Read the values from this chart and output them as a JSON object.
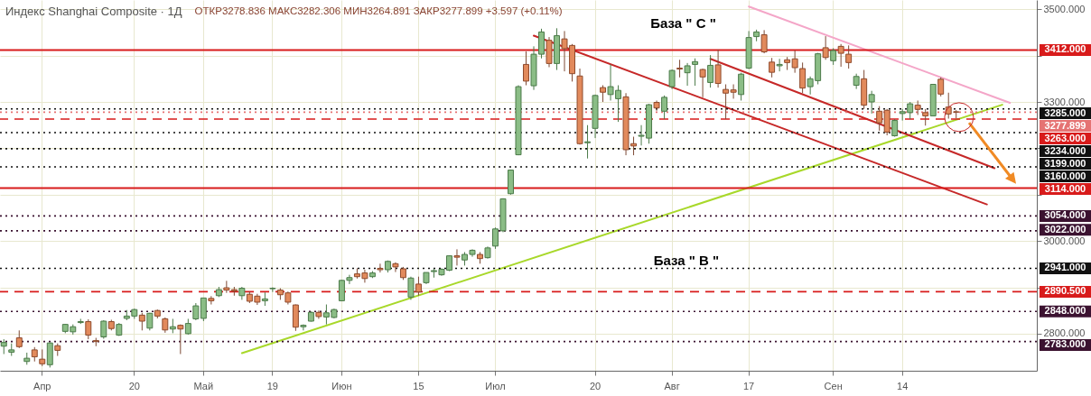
{
  "chart_data": {
    "type": "candlestick",
    "title": "Индекс Shanghai Composite · 1Д",
    "subtitle": "ОТКР3278.836 МАКС3282.306 МИН3264.891 ЗАКР3277.899 +3.597 (+0.11%)",
    "annotations": [
      "База \" С \"",
      "База \" В \""
    ],
    "categories": [
      null,
      null,
      null,
      null,
      null,
      "Апр",
      null,
      null,
      null,
      null,
      null,
      null,
      null,
      null,
      null,
      null,
      null,
      "20",
      null,
      null,
      null,
      null,
      null,
      null,
      null,
      null,
      "Май",
      null,
      null,
      null,
      null,
      null,
      null,
      null,
      null,
      "19",
      null,
      null,
      null,
      null,
      null,
      null,
      null,
      null,
      "Июн",
      null,
      null,
      null,
      null,
      null,
      null,
      null,
      null,
      null,
      "15",
      null,
      null,
      null,
      null,
      null,
      null,
      null,
      null,
      null,
      "Июл",
      null,
      null,
      null,
      null,
      null,
      null,
      null,
      null,
      null,
      null,
      null,
      null,
      "20",
      null,
      null,
      null,
      null,
      null,
      null,
      null,
      null,
      null,
      "Авг",
      null,
      null,
      null,
      null,
      null,
      null,
      null,
      null,
      null,
      "17",
      null,
      null,
      null,
      null,
      null,
      null,
      null,
      null,
      null,
      null,
      "Сен",
      null,
      null,
      null,
      null,
      null,
      null,
      null,
      null,
      "14",
      null,
      null,
      null,
      null,
      null,
      null,
      null,
      null,
      null,
      null,
      null,
      null,
      null,
      null,
      null,
      null,
      null
    ],
    "ohlc": [
      [
        2773,
        2788,
        2756,
        2781
      ],
      [
        2760,
        2779,
        2752,
        2765
      ],
      [
        2791,
        2807,
        2769,
        2772
      ],
      [
        2740,
        2759,
        2733,
        2747
      ],
      [
        2765,
        2771,
        2740,
        2750
      ],
      [
        2745,
        2766,
        2730,
        2735
      ],
      [
        2733,
        2781,
        2727,
        2780
      ],
      [
        2774,
        2779,
        2752,
        2764
      ],
      [
        2805,
        2821,
        2801,
        2820
      ],
      [
        2804,
        2820,
        2798,
        2815
      ],
      [
        2824,
        2832,
        2821,
        2826
      ],
      [
        2826,
        2831,
        2788,
        2797
      ],
      [
        2785,
        2791,
        2773,
        2783
      ],
      [
        2793,
        2829,
        2789,
        2827
      ],
      [
        2826,
        2830,
        2807,
        2811
      ],
      [
        2797,
        2823,
        2795,
        2820
      ],
      [
        2833,
        2851,
        2829,
        2838
      ],
      [
        2838,
        2854,
        2832,
        2852
      ],
      [
        2840,
        2845,
        2807,
        2827
      ],
      [
        2812,
        2845,
        2807,
        2844
      ],
      [
        2850,
        2852,
        2833,
        2838
      ],
      [
        2832,
        2835,
        2802,
        2808
      ],
      [
        2810,
        2832,
        2801,
        2815
      ],
      [
        2818,
        2820,
        2756,
        2810
      ],
      [
        2800,
        2832,
        2798,
        2822
      ],
      [
        2832,
        2866,
        2829,
        2860
      ],
      [
        2833,
        2877,
        2827,
        2877
      ],
      [
        2876,
        2881,
        2863,
        2871
      ],
      [
        2882,
        2901,
        2879,
        2895
      ],
      [
        2899,
        2914,
        2888,
        2894
      ],
      [
        2895,
        2901,
        2882,
        2892
      ],
      [
        2882,
        2901,
        2873,
        2898
      ],
      [
        2885,
        2891,
        2866,
        2870
      ],
      [
        2881,
        2886,
        2862,
        2868
      ],
      [
        2871,
        2889,
        2860,
        2875
      ],
      [
        2897,
        2900,
        2890,
        2898
      ],
      [
        2894,
        2898,
        2873,
        2884
      ],
      [
        2888,
        2891,
        2863,
        2868
      ],
      [
        2862,
        2863,
        2806,
        2814
      ],
      [
        2815,
        2820,
        2807,
        2818
      ],
      [
        2827,
        2848,
        2826,
        2846
      ],
      [
        2846,
        2850,
        2832,
        2837
      ],
      [
        2836,
        2863,
        2820,
        2845
      ],
      [
        2835,
        2854,
        2833,
        2852
      ],
      [
        2871,
        2916,
        2870,
        2915
      ],
      [
        2915,
        2927,
        2907,
        2921
      ],
      [
        2929,
        2941,
        2919,
        2923
      ],
      [
        2931,
        2938,
        2910,
        2919
      ],
      [
        2923,
        2935,
        2920,
        2931
      ],
      [
        2941,
        2951,
        2932,
        2938
      ],
      [
        2938,
        2958,
        2932,
        2956
      ],
      [
        2951,
        2954,
        2933,
        2944
      ],
      [
        2940,
        2944,
        2916,
        2921
      ],
      [
        2879,
        2923,
        2873,
        2920
      ],
      [
        2907,
        2923,
        2882,
        2890
      ],
      [
        2910,
        2932,
        2907,
        2932
      ],
      [
        2934,
        2940,
        2921,
        2936
      ],
      [
        2927,
        2941,
        2925,
        2939
      ],
      [
        2937,
        2969,
        2935,
        2968
      ],
      [
        2968,
        2982,
        2947,
        2965
      ],
      [
        2959,
        2976,
        2947,
        2971
      ],
      [
        2971,
        2982,
        2966,
        2980
      ],
      [
        2971,
        2976,
        2951,
        2962
      ],
      [
        2964,
        2988,
        2962,
        2985
      ],
      [
        2989,
        3029,
        2983,
        3026
      ],
      [
        3022,
        3092,
        3019,
        3091
      ],
      [
        3102,
        3154,
        3100,
        3153
      ],
      [
        3186,
        3336,
        3185,
        3333
      ],
      [
        3381,
        3409,
        3336,
        3345
      ],
      [
        3335,
        3420,
        3326,
        3403
      ],
      [
        3403,
        3458,
        3394,
        3451
      ],
      [
        3433,
        3440,
        3375,
        3383
      ],
      [
        3383,
        3459,
        3369,
        3443
      ],
      [
        3436,
        3453,
        3366,
        3415
      ],
      [
        3422,
        3425,
        3344,
        3361
      ],
      [
        3356,
        3372,
        3208,
        3210
      ],
      [
        3212,
        3250,
        3178,
        3214
      ],
      [
        3243,
        3316,
        3222,
        3314
      ],
      [
        3331,
        3336,
        3300,
        3321
      ],
      [
        3316,
        3381,
        3303,
        3333
      ],
      [
        3307,
        3336,
        3257,
        3325
      ],
      [
        3311,
        3319,
        3185,
        3197
      ],
      [
        3210,
        3225,
        3185,
        3205
      ],
      [
        3226,
        3250,
        3206,
        3228
      ],
      [
        3222,
        3296,
        3210,
        3294
      ],
      [
        3299,
        3303,
        3281,
        3287
      ],
      [
        3280,
        3314,
        3263,
        3310
      ],
      [
        3333,
        3370,
        3328,
        3368
      ],
      [
        3373,
        3391,
        3353,
        3371
      ],
      [
        3363,
        3384,
        3335,
        3378
      ],
      [
        3381,
        3394,
        3335,
        3387
      ],
      [
        3370,
        3372,
        3310,
        3354
      ],
      [
        3342,
        3401,
        3331,
        3379
      ],
      [
        3380,
        3413,
        3331,
        3340
      ],
      [
        3327,
        3338,
        3263,
        3319
      ],
      [
        3326,
        3338,
        3307,
        3321
      ],
      [
        3316,
        3363,
        3303,
        3360
      ],
      [
        3373,
        3453,
        3371,
        3439
      ],
      [
        3441,
        3456,
        3431,
        3451
      ],
      [
        3445,
        3455,
        3405,
        3408
      ],
      [
        3386,
        3395,
        3353,
        3364
      ],
      [
        3378,
        3393,
        3366,
        3381
      ],
      [
        3391,
        3397,
        3369,
        3385
      ],
      [
        3393,
        3411,
        3363,
        3374
      ],
      [
        3372,
        3385,
        3319,
        3330
      ],
      [
        3333,
        3355,
        3316,
        3350
      ],
      [
        3346,
        3406,
        3338,
        3404
      ],
      [
        3417,
        3442,
        3391,
        3396
      ],
      [
        3389,
        3416,
        3380,
        3411
      ],
      [
        3420,
        3425,
        3376,
        3405
      ],
      [
        3403,
        3422,
        3372,
        3385
      ],
      [
        3336,
        3361,
        3328,
        3355
      ],
      [
        3350,
        3369,
        3285,
        3293
      ],
      [
        3300,
        3324,
        3275,
        3316
      ],
      [
        3280,
        3291,
        3238,
        3255
      ],
      [
        3282,
        3285,
        3228,
        3235
      ],
      [
        3227,
        3263,
        3225,
        3260
      ],
      [
        3275,
        3285,
        3260,
        3279
      ],
      [
        3277,
        3300,
        3263,
        3296
      ],
      [
        3293,
        3303,
        3272,
        3284
      ],
      [
        3277,
        3285,
        3249,
        3270
      ],
      [
        3270,
        3339,
        3269,
        3338
      ],
      [
        3349,
        3353,
        3312,
        3317
      ],
      [
        3289,
        3320,
        3264,
        3274
      ],
      [
        3278.836,
        3282.306,
        3264.891,
        3277.899
      ],
      null,
      null,
      null,
      null,
      null,
      null,
      null,
      null,
      null,
      null
    ],
    "series": [
      {
        "type": "line",
        "color": "#a8d82a",
        "values": [
          null,
          null,
          null,
          null,
          null,
          null,
          null,
          null,
          null,
          null,
          null,
          null,
          null,
          null,
          null,
          null,
          null,
          null,
          null,
          null,
          null,
          null,
          null,
          null,
          null,
          null,
          null,
          null,
          null,
          null,
          null,
          2758,
          null,
          null,
          null,
          null,
          null,
          null,
          null,
          null,
          null,
          null,
          null,
          null,
          null,
          null,
          null,
          null,
          null,
          null,
          null,
          null,
          null,
          null,
          null,
          null,
          null,
          null,
          null,
          null,
          null,
          null,
          null,
          null,
          null,
          null,
          null,
          null,
          null,
          null,
          null,
          null,
          null,
          null,
          null,
          null,
          null,
          null,
          null,
          null,
          null,
          null,
          null,
          null,
          null,
          null,
          null,
          null,
          null,
          null,
          null,
          null,
          null,
          null,
          null,
          null,
          null,
          null,
          null,
          null,
          null,
          null,
          null,
          null,
          null,
          null,
          null,
          null,
          null,
          null,
          null,
          null,
          null,
          null,
          null,
          null,
          null,
          null,
          null,
          null,
          null,
          null,
          null,
          null,
          null,
          null,
          null,
          null,
          null,
          null,
          3294,
          null,
          null,
          null,
          null
        ]
      },
      {
        "type": "line",
        "color": "#f4a6c8",
        "values": [
          null,
          null,
          null,
          null,
          null,
          null,
          null,
          null,
          null,
          null,
          null,
          null,
          null,
          null,
          null,
          null,
          null,
          null,
          null,
          null,
          null,
          null,
          null,
          null,
          null,
          null,
          null,
          null,
          null,
          null,
          null,
          null,
          null,
          null,
          null,
          null,
          null,
          null,
          null,
          null,
          null,
          null,
          null,
          null,
          null,
          null,
          null,
          null,
          null,
          null,
          null,
          null,
          null,
          null,
          null,
          null,
          null,
          null,
          null,
          null,
          null,
          null,
          null,
          null,
          null,
          null,
          null,
          null,
          null,
          null,
          null,
          null,
          null,
          null,
          null,
          null,
          null,
          null,
          null,
          null,
          null,
          null,
          null,
          null,
          null,
          null,
          null,
          null,
          null,
          null,
          null,
          null,
          null,
          null,
          null,
          null,
          null,
          3506,
          null,
          null,
          null,
          null,
          null,
          null,
          null,
          null,
          null,
          null,
          null,
          null,
          null,
          null,
          null,
          null,
          null,
          null,
          null,
          null,
          null,
          null,
          null,
          null,
          null,
          null,
          null,
          null,
          null,
          null,
          null,
          null,
          null,
          3298,
          null,
          null,
          null
        ]
      },
      {
        "type": "line",
        "color": "#c62828",
        "values": [
          null,
          null,
          null,
          null,
          null,
          null,
          null,
          null,
          null,
          null,
          null,
          null,
          null,
          null,
          null,
          null,
          null,
          null,
          null,
          null,
          null,
          null,
          null,
          null,
          null,
          null,
          null,
          null,
          null,
          null,
          null,
          null,
          null,
          null,
          null,
          null,
          null,
          null,
          null,
          null,
          null,
          null,
          null,
          null,
          null,
          null,
          null,
          null,
          null,
          null,
          null,
          null,
          null,
          null,
          null,
          null,
          null,
          null,
          null,
          null,
          null,
          null,
          null,
          null,
          null,
          null,
          null,
          null,
          null,
          3443,
          null,
          null,
          null,
          null,
          null,
          null,
          null,
          null,
          null,
          null,
          null,
          null,
          null,
          null,
          null,
          null,
          null,
          null,
          null,
          null,
          null,
          null,
          null,
          null,
          null,
          null,
          null,
          null,
          null,
          null,
          null,
          null,
          null,
          null,
          null,
          null,
          null,
          null,
          null,
          null,
          null,
          null,
          null,
          null,
          null,
          null,
          null,
          null,
          null,
          null,
          null,
          null,
          null,
          null,
          null,
          null,
          null,
          null,
          3079,
          null,
          null,
          null,
          null,
          null,
          null
        ]
      },
      {
        "type": "line",
        "color": "#c62828",
        "values": [
          null,
          null,
          null,
          null,
          null,
          null,
          null,
          null,
          null,
          null,
          null,
          null,
          null,
          null,
          null,
          null,
          null,
          null,
          null,
          null,
          null,
          null,
          null,
          null,
          null,
          null,
          null,
          null,
          null,
          null,
          null,
          null,
          null,
          null,
          null,
          null,
          null,
          null,
          null,
          null,
          null,
          null,
          null,
          null,
          null,
          null,
          null,
          null,
          null,
          null,
          null,
          null,
          null,
          null,
          null,
          null,
          null,
          null,
          null,
          null,
          null,
          null,
          null,
          null,
          null,
          null,
          null,
          null,
          null,
          null,
          null,
          null,
          null,
          null,
          null,
          null,
          null,
          null,
          null,
          null,
          null,
          null,
          null,
          null,
          null,
          null,
          null,
          null,
          null,
          null,
          null,
          null,
          3393,
          null,
          null,
          null,
          null,
          null,
          null,
          null,
          null,
          null,
          null,
          null,
          null,
          null,
          null,
          null,
          null,
          null,
          null,
          null,
          null,
          null,
          null,
          null,
          null,
          null,
          null,
          null,
          null,
          null,
          null,
          null,
          null,
          null,
          null,
          null,
          null,
          3157,
          null,
          null,
          null,
          null,
          null
        ]
      }
    ],
    "ylim": [
      2720,
      3520
    ],
    "yticks": [
      {
        "value": 2800,
        "label": "2800.000"
      },
      {
        "value": 2900,
        "label": null
      },
      {
        "value": 3000,
        "label": "3000.000"
      },
      {
        "value": 3100,
        "label": null
      },
      {
        "value": 3200,
        "label": null
      },
      {
        "value": 3300,
        "label": "3300.000"
      },
      {
        "value": 3400,
        "label": null
      },
      {
        "value": 3500,
        "label": "3500.000"
      }
    ],
    "grid": true,
    "ref_lines": [
      {
        "axis": "y",
        "value": 3412,
        "label": "3412.000",
        "color": "#d81b1b",
        "line_style": "solid"
      },
      {
        "axis": "y",
        "value": 3285,
        "label": "3285.000",
        "color": "#111111",
        "line_style": "dotted"
      },
      {
        "axis": "y",
        "value": 3277.899,
        "label": "3277.899",
        "color": "#e57373",
        "line_style": "dotted"
      },
      {
        "axis": "y",
        "value": 3263,
        "label": "3263.000",
        "color": "#d81b1b",
        "line_style": "dashed"
      },
      {
        "axis": "y",
        "value": 3234,
        "label": "3234.000",
        "color": "#111111",
        "line_style": "dotted"
      },
      {
        "axis": "y",
        "value": 3199,
        "label": "3199.000",
        "color": "#111111",
        "line_style": "dotted"
      },
      {
        "axis": "y",
        "value": 3160,
        "label": "3160.000",
        "color": "#111111",
        "line_style": "dotted"
      },
      {
        "axis": "y",
        "value": 3114,
        "label": "3114.000",
        "color": "#d81b1b",
        "line_style": "solid"
      },
      {
        "axis": "y",
        "value": 3054,
        "label": "3054.000",
        "color": "#3b1230",
        "line_style": "dotted"
      },
      {
        "axis": "y",
        "value": 3022,
        "label": "3022.000",
        "color": "#3b1230",
        "line_style": "dotted"
      },
      {
        "axis": "y",
        "value": 2941,
        "label": "2941.000",
        "color": "#111111",
        "line_style": "dotted"
      },
      {
        "axis": "y",
        "value": 2890.5,
        "label": "2890.500",
        "color": "#d81b1b",
        "line_style": "dashed"
      },
      {
        "axis": "y",
        "value": 2848,
        "label": "2848.000",
        "color": "#3b1230",
        "line_style": "dotted"
      },
      {
        "axis": "y",
        "value": 2783,
        "label": "2783.000",
        "color": "#3b1230",
        "line_style": "dotted"
      }
    ]
  }
}
